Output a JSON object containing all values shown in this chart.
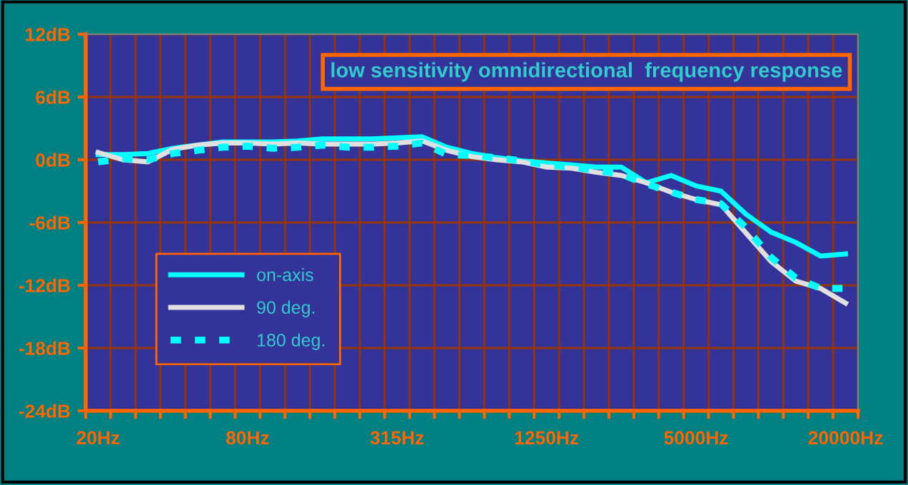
{
  "chart_data": {
    "type": "line",
    "title": "low sensitivity omnidirectional  frequency response",
    "categories": [
      "20Hz",
      null,
      null,
      null,
      null,
      null,
      "80Hz",
      null,
      null,
      null,
      null,
      null,
      "315Hz",
      null,
      null,
      null,
      null,
      null,
      "1250Hz",
      null,
      null,
      null,
      null,
      null,
      "5000Hz",
      null,
      null,
      null,
      null,
      null,
      "20000Hz"
    ],
    "series": [
      {
        "name": "on-axis",
        "color": "#00ffff",
        "line_style": "solid",
        "values": [
          0.5,
          0.5,
          0.6,
          1.1,
          1.4,
          1.7,
          1.7,
          1.7,
          1.8,
          2.0,
          2.0,
          2.0,
          2.1,
          2.2,
          1.2,
          0.6,
          0.2,
          -0.1,
          -0.3,
          -0.5,
          -0.7,
          -0.7,
          -2.2,
          -1.5,
          -2.5,
          -3.0,
          -5.2,
          -6.9,
          -7.9,
          -9.2,
          -9.0
        ]
      },
      {
        "name": "90 deg.",
        "color": "#e0e0e0",
        "line_style": "solid",
        "values": [
          0.7,
          0.0,
          -0.2,
          1.0,
          1.4,
          1.6,
          1.6,
          1.5,
          1.6,
          1.5,
          1.5,
          1.5,
          1.6,
          1.8,
          0.9,
          0.3,
          0.0,
          -0.2,
          -0.7,
          -0.8,
          -1.2,
          -1.5,
          -2.2,
          -3.1,
          -3.8,
          -4.3,
          -7.0,
          -9.7,
          -11.6,
          -12.3,
          -13.7
        ]
      },
      {
        "name": "180 deg.",
        "color": "#00ffff",
        "line_style": "dashed",
        "values": [
          -0.2,
          0.1,
          0.0,
          0.6,
          0.9,
          1.2,
          1.3,
          1.1,
          1.2,
          1.4,
          1.2,
          1.2,
          1.3,
          1.6,
          0.5,
          0.4,
          0.2,
          -0.1,
          -0.5,
          -0.7,
          -1.0,
          -1.4,
          -2.3,
          -3.1,
          -3.8,
          -4.2,
          -6.5,
          -9.3,
          -11.3,
          -12.3,
          -12.3
        ]
      }
    ],
    "ylim": [
      -24,
      12
    ],
    "yticks": [
      {
        "value": -24,
        "label": "-24dB"
      },
      {
        "value": -18,
        "label": "-18dB"
      },
      {
        "value": -12,
        "label": "-12dB"
      },
      {
        "value": -6,
        "label": "-6dB"
      },
      {
        "value": 0,
        "label": "0dB"
      },
      {
        "value": 6,
        "label": "6dB"
      },
      {
        "value": 12,
        "label": "12dB"
      }
    ],
    "grid": true,
    "legend": "bottom left",
    "marker": "none"
  }
}
